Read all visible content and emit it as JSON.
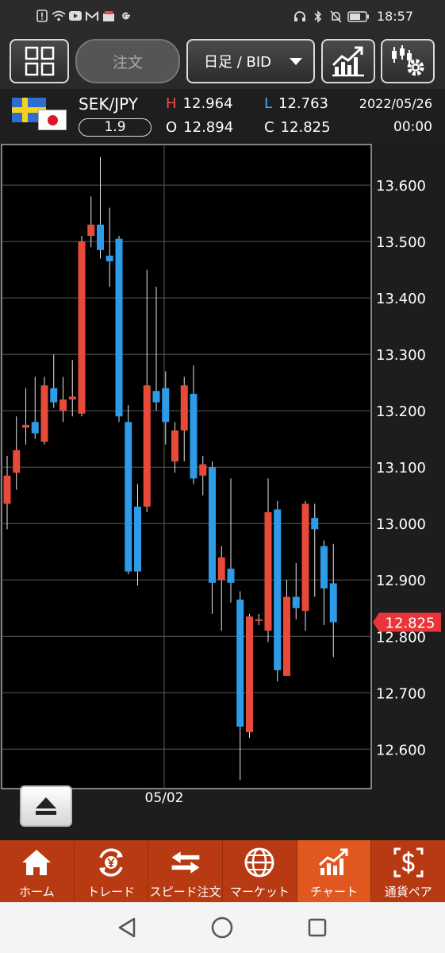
{
  "status_bar": {
    "time": "18:57",
    "left_icons": [
      "alert-icon",
      "wifi-icon",
      "youtube-icon",
      "gmail-icon",
      "shop-icon",
      "google-icon"
    ],
    "right_icons": [
      "headphones-icon",
      "bluetooth-icon",
      "mute-icon",
      "battery-icon"
    ]
  },
  "toolbar": {
    "order_label": "注文",
    "timeframe_label": "日足 / BID"
  },
  "instrument": {
    "pair": "SEK/JPY",
    "spread": "1.9",
    "high_key": "H",
    "high": "12.964",
    "low_key": "L",
    "low": "12.763",
    "open_key": "O",
    "open": "12.894",
    "close_key": "C",
    "close": "12.825",
    "date": "2022/05/26",
    "time": "00:00"
  },
  "chart_data": {
    "type": "candlestick",
    "x_label": "05/02",
    "ylim": [
      12.53,
      13.672
    ],
    "y_ticks": [
      "13.600",
      "13.500",
      "13.400",
      "13.300",
      "13.200",
      "13.100",
      "13.000",
      "12.900",
      "12.800",
      "12.700",
      "12.600"
    ],
    "current_price": "12.825",
    "colors": {
      "up": "#e84a3a",
      "down": "#2e9be8",
      "price_tag": "#e8353a"
    },
    "candles": [
      {
        "o": 13.035,
        "h": 13.12,
        "l": 12.99,
        "c": 13.085
      },
      {
        "o": 13.09,
        "h": 13.19,
        "l": 13.06,
        "c": 13.13
      },
      {
        "o": 13.17,
        "h": 13.24,
        "l": 13.14,
        "c": 13.175
      },
      {
        "o": 13.18,
        "h": 13.26,
        "l": 13.15,
        "c": 13.16
      },
      {
        "o": 13.145,
        "h": 13.26,
        "l": 13.14,
        "c": 13.245
      },
      {
        "o": 13.24,
        "h": 13.3,
        "l": 13.205,
        "c": 13.215
      },
      {
        "o": 13.2,
        "h": 13.26,
        "l": 13.18,
        "c": 13.22
      },
      {
        "o": 13.22,
        "h": 13.29,
        "l": 13.19,
        "c": 13.225
      },
      {
        "o": 13.195,
        "h": 13.51,
        "l": 13.19,
        "c": 13.5
      },
      {
        "o": 13.51,
        "h": 13.58,
        "l": 13.49,
        "c": 13.53
      },
      {
        "o": 13.53,
        "h": 13.65,
        "l": 13.47,
        "c": 13.485
      },
      {
        "o": 13.475,
        "h": 13.56,
        "l": 13.42,
        "c": 13.465
      },
      {
        "o": 13.505,
        "h": 13.51,
        "l": 13.18,
        "c": 13.19
      },
      {
        "o": 13.18,
        "h": 13.21,
        "l": 12.91,
        "c": 12.915
      },
      {
        "o": 13.03,
        "h": 13.07,
        "l": 12.89,
        "c": 12.915
      },
      {
        "o": 13.03,
        "h": 13.45,
        "l": 13.02,
        "c": 13.245
      },
      {
        "o": 13.235,
        "h": 13.42,
        "l": 13.2,
        "c": 13.215
      },
      {
        "o": 13.24,
        "h": 13.27,
        "l": 13.14,
        "c": 13.18
      },
      {
        "o": 13.11,
        "h": 13.18,
        "l": 13.09,
        "c": 13.165
      },
      {
        "o": 13.165,
        "h": 13.26,
        "l": 13.11,
        "c": 13.245
      },
      {
        "o": 13.23,
        "h": 13.28,
        "l": 13.07,
        "c": 13.08
      },
      {
        "o": 13.085,
        "h": 13.12,
        "l": 13.05,
        "c": 13.105
      },
      {
        "o": 13.1,
        "h": 13.11,
        "l": 12.84,
        "c": 12.895
      },
      {
        "o": 12.9,
        "h": 12.96,
        "l": 12.81,
        "c": 12.94
      },
      {
        "o": 12.92,
        "h": 13.08,
        "l": 12.86,
        "c": 12.895
      },
      {
        "o": 12.865,
        "h": 12.88,
        "l": 12.545,
        "c": 12.64
      },
      {
        "o": 12.63,
        "h": 12.84,
        "l": 12.62,
        "c": 12.835
      },
      {
        "o": 12.83,
        "h": 12.84,
        "l": 12.82,
        "c": 12.83
      },
      {
        "o": 12.81,
        "h": 13.08,
        "l": 12.79,
        "c": 13.02
      },
      {
        "o": 13.025,
        "h": 13.04,
        "l": 12.72,
        "c": 12.74
      },
      {
        "o": 12.73,
        "h": 12.9,
        "l": 12.73,
        "c": 12.87
      },
      {
        "o": 12.87,
        "h": 12.93,
        "l": 12.83,
        "c": 12.85
      },
      {
        "o": 12.845,
        "h": 13.04,
        "l": 12.81,
        "c": 13.035
      },
      {
        "o": 13.01,
        "h": 13.035,
        "l": 12.87,
        "c": 12.99
      },
      {
        "o": 12.96,
        "h": 12.97,
        "l": 12.82,
        "c": 12.885
      },
      {
        "o": 12.894,
        "h": 12.964,
        "l": 12.763,
        "c": 12.825
      }
    ]
  },
  "tabs": [
    {
      "label": "ホーム",
      "icon": "home-icon"
    },
    {
      "label": "トレード",
      "icon": "yen-exchange-icon"
    },
    {
      "label": "スピード注文",
      "icon": "arrows-exchange-icon"
    },
    {
      "label": "マーケット",
      "icon": "globe-icon"
    },
    {
      "label": "チャート",
      "icon": "chart-icon"
    },
    {
      "label": "通貨ペア",
      "icon": "dollar-box-icon"
    }
  ],
  "active_tab": "チャート",
  "nav": [
    "back-icon",
    "home-circle-icon",
    "recents-icon"
  ]
}
